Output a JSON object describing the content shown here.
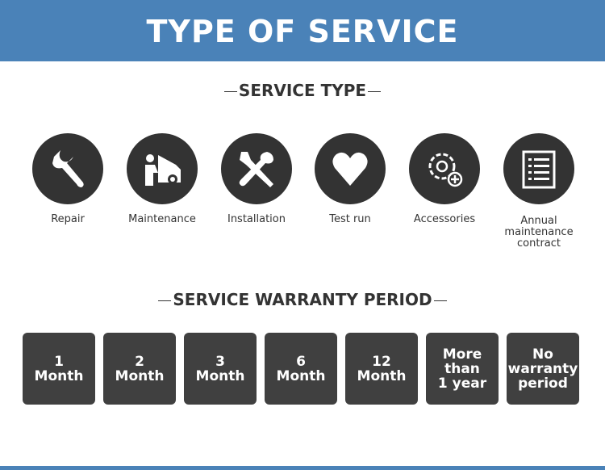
{
  "header": {
    "title": "TYPE OF SERVICE"
  },
  "service_type": {
    "title": "SERVICE TYPE",
    "items": [
      {
        "label": "Repair",
        "icon": "wrench-icon"
      },
      {
        "label": "Maintenance",
        "icon": "car-mechanic-icon"
      },
      {
        "label": "Installation",
        "icon": "tools-icon"
      },
      {
        "label": "Test run",
        "icon": "heart-icon"
      },
      {
        "label": "Accessories",
        "icon": "gear-plus-icon"
      },
      {
        "label": "Annual maintenance contract",
        "icon": "list-document-icon"
      }
    ]
  },
  "warranty": {
    "title": "SERVICE WARRANTY PERIOD",
    "items": [
      "1\nMonth",
      "2\nMonth",
      "3\nMonth",
      "6\nMonth",
      "12\nMonth",
      "More\nthan\n1 year",
      "No\nwarranty\nperiod"
    ]
  },
  "colors": {
    "header": "#4a82b8",
    "dark": "#333333",
    "box": "#404040"
  }
}
